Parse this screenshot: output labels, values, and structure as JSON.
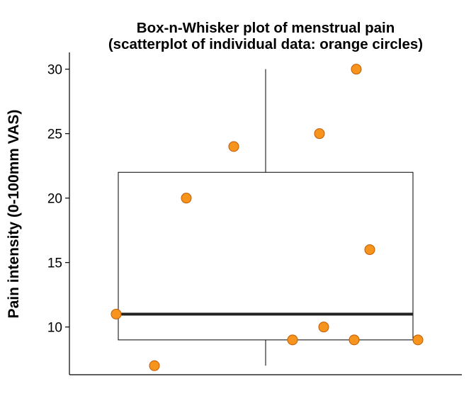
{
  "chart_data": {
    "type": "box",
    "title": "Box-n-Whisker plot of menstrual pain",
    "subtitle": "(scatterplot of individual data: orange circles)",
    "xlabel": "",
    "ylabel": "Pain intensity (0-100mm VAS)",
    "ylim": [
      6.3,
      31.3
    ],
    "yticks": [
      10,
      15,
      20,
      25,
      30
    ],
    "grid": false,
    "box": {
      "min": 7,
      "q1": 9,
      "median": 11,
      "q3": 22,
      "max": 30
    },
    "points": [
      11,
      7,
      20,
      24,
      9,
      10,
      25,
      9,
      30,
      16,
      9
    ],
    "colors": {
      "point_fill": "#F7941D",
      "point_stroke": "#C25A00",
      "line": "#000000",
      "median": "#222222"
    }
  }
}
